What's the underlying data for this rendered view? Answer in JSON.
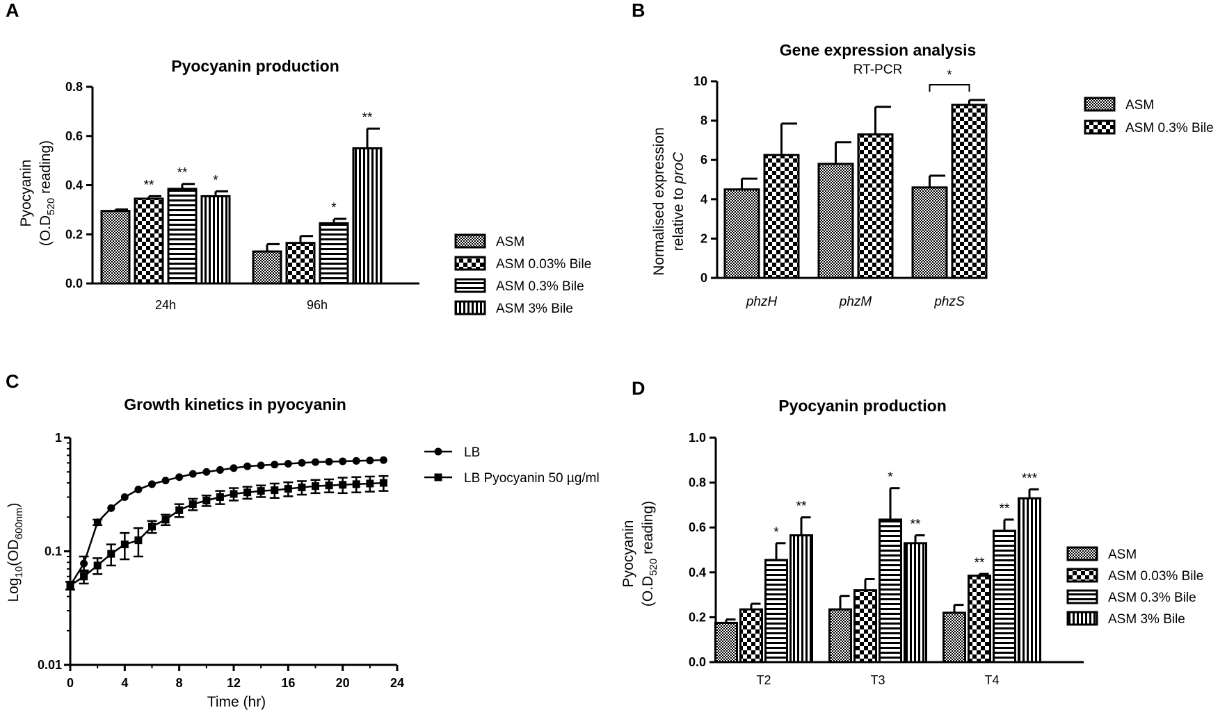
{
  "panels": {
    "A": {
      "letter": "A",
      "chart_data": {
        "type": "bar",
        "title": "Pyocyanin production",
        "ylabel": "Pyocyanin",
        "ylabel2": "(O.D520 reading)",
        "ylabel_prefix": "(O.D",
        "ylabel_sub": "520",
        "ylabel_suffix": " reading)",
        "xlabel": "",
        "ylim": [
          0,
          0.8
        ],
        "yticks": [
          "0.0",
          "0.2",
          "0.4",
          "0.6",
          "0.8"
        ],
        "categories": [
          "24h",
          "96h"
        ],
        "series": [
          {
            "name": "ASM",
            "pattern": "dots",
            "values": [
              0.295,
              0.13
            ],
            "errors": [
              0.006,
              0.03
            ],
            "sig": [
              "",
              ""
            ]
          },
          {
            "name": "ASM 0.03% Bile",
            "pattern": "checker",
            "values": [
              0.345,
              0.165
            ],
            "errors": [
              0.01,
              0.028
            ],
            "sig": [
              "**",
              ""
            ]
          },
          {
            "name": "ASM 0.3% Bile",
            "pattern": "hlines",
            "values": [
              0.385,
              0.245
            ],
            "errors": [
              0.02,
              0.018
            ],
            "sig": [
              "**",
              "*"
            ]
          },
          {
            "name": "ASM 3% Bile",
            "pattern": "vlines",
            "values": [
              0.355,
              0.55
            ],
            "errors": [
              0.02,
              0.08
            ],
            "sig": [
              "*",
              "**"
            ]
          }
        ]
      }
    },
    "B": {
      "letter": "B",
      "chart_data": {
        "type": "bar",
        "title": "Gene expression analysis",
        "subtitle": "RT-PCR",
        "ylabel": "Normalised expression",
        "ylabel2_prefix": "relative to ",
        "ylabel2_italic": "proC",
        "xlabel": "",
        "ylim": [
          0,
          10
        ],
        "yticks": [
          "0",
          "2",
          "4",
          "6",
          "8",
          "10"
        ],
        "categories": [
          "phzH",
          "phzM",
          "phzS"
        ],
        "series": [
          {
            "name": "ASM",
            "pattern": "dots",
            "values": [
              4.5,
              5.8,
              4.6
            ],
            "errors": [
              0.55,
              1.1,
              0.6
            ]
          },
          {
            "name": "ASM 0.3% Bile",
            "pattern": "checker",
            "values": [
              6.25,
              7.3,
              8.8
            ],
            "errors": [
              1.6,
              1.4,
              0.25
            ]
          }
        ],
        "annotations": [
          {
            "text": "*",
            "category": "phzS",
            "type": "bracket"
          }
        ]
      }
    },
    "C": {
      "letter": "C",
      "chart_data": {
        "type": "line",
        "title": "Growth kinetics in pyocyanin",
        "xlabel": "Time (hr)",
        "ylabel_prefix": "Log",
        "ylabel_sub1": "10",
        "ylabel_mid": "(OD",
        "ylabel_sub2": "600nm",
        "ylabel_suffix": ")",
        "yscale": "log",
        "ylim": [
          0.01,
          1
        ],
        "xlim": [
          0,
          24
        ],
        "xticks": [
          "0",
          "4",
          "8",
          "12",
          "16",
          "20",
          "24"
        ],
        "yticks": [
          "0.01",
          "0.1",
          "1"
        ],
        "series": [
          {
            "name": "LB",
            "marker": "circle",
            "x": [
              0,
              1,
              2,
              3,
              4,
              5,
              6,
              7,
              8,
              9,
              10,
              11,
              12,
              13,
              14,
              15,
              16,
              17,
              18,
              19,
              20,
              21,
              22,
              23
            ],
            "y": [
              0.05,
              0.078,
              0.18,
              0.24,
              0.3,
              0.35,
              0.39,
              0.42,
              0.45,
              0.48,
              0.5,
              0.52,
              0.54,
              0.56,
              0.57,
              0.58,
              0.59,
              0.6,
              0.61,
              0.615,
              0.62,
              0.625,
              0.63,
              0.635
            ],
            "errors": [
              0,
              0.012,
              0.01,
              0,
              0,
              0,
              0,
              0,
              0,
              0,
              0,
              0,
              0,
              0,
              0,
              0,
              0,
              0,
              0,
              0,
              0,
              0,
              0,
              0
            ]
          },
          {
            "name": "LB Pyocyanin 50 µg/ml",
            "marker": "square",
            "x": [
              0,
              1,
              2,
              3,
              4,
              5,
              6,
              7,
              8,
              9,
              10,
              11,
              12,
              13,
              14,
              15,
              16,
              17,
              18,
              19,
              20,
              21,
              22,
              23
            ],
            "y": [
              0.05,
              0.06,
              0.075,
              0.095,
              0.115,
              0.125,
              0.165,
              0.19,
              0.23,
              0.26,
              0.28,
              0.3,
              0.32,
              0.33,
              0.34,
              0.345,
              0.355,
              0.365,
              0.375,
              0.38,
              0.385,
              0.39,
              0.395,
              0.4
            ],
            "errors": [
              0.004,
              0.008,
              0.012,
              0.02,
              0.03,
              0.035,
              0.02,
              0.02,
              0.03,
              0.03,
              0.03,
              0.04,
              0.04,
              0.04,
              0.04,
              0.05,
              0.05,
              0.05,
              0.05,
              0.05,
              0.06,
              0.06,
              0.06,
              0.06
            ]
          }
        ]
      }
    },
    "D": {
      "letter": "D",
      "chart_data": {
        "type": "bar",
        "title": "Pyocyanin production",
        "ylabel": "Pyocyanin",
        "ylabel_prefix": "(O.D",
        "ylabel_sub": "520",
        "ylabel_suffix": " reading)",
        "xlabel": "",
        "ylim": [
          0,
          1.0
        ],
        "yticks": [
          "0.0",
          "0.2",
          "0.4",
          "0.6",
          "0.8",
          "1.0"
        ],
        "categories": [
          "T2",
          "T3",
          "T4"
        ],
        "series": [
          {
            "name": "ASM",
            "pattern": "dots",
            "values": [
              0.175,
              0.235,
              0.22
            ],
            "errors": [
              0.015,
              0.06,
              0.035
            ],
            "sig": [
              "",
              "",
              ""
            ]
          },
          {
            "name": "ASM 0.03% Bile",
            "pattern": "checker",
            "values": [
              0.235,
              0.32,
              0.385
            ],
            "errors": [
              0.025,
              0.05,
              0.008
            ],
            "sig": [
              "",
              "",
              "**"
            ]
          },
          {
            "name": "ASM 0.3% Bile",
            "pattern": "hlines",
            "values": [
              0.455,
              0.635,
              0.585
            ],
            "errors": [
              0.075,
              0.14,
              0.05
            ],
            "sig": [
              "*",
              "*",
              "**"
            ]
          },
          {
            "name": "ASM 3% Bile",
            "pattern": "vlines",
            "values": [
              0.565,
              0.53,
              0.73
            ],
            "errors": [
              0.08,
              0.035,
              0.04
            ],
            "sig": [
              "**",
              "**",
              "***"
            ]
          }
        ]
      }
    }
  }
}
